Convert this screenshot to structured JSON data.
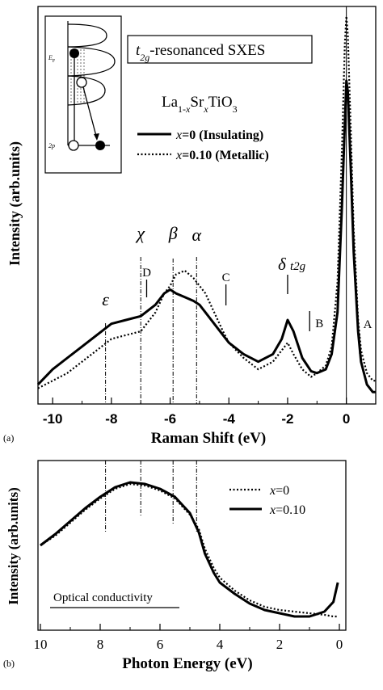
{
  "chart_data": [
    {
      "panel": "(a)",
      "type": "line",
      "title": "t2g-resonanced SXES",
      "compound": "La1-xSrxTiO3",
      "xlabel": "Raman Shift (eV)",
      "ylabel": "Intensity (arb.units)",
      "xlim": [
        -10.5,
        1.0
      ],
      "xticks": [
        "-10",
        "-8",
        "-6",
        "-4",
        "-2",
        "0"
      ],
      "xtick_values": [
        -10,
        -8,
        -6,
        -4,
        -2,
        0
      ],
      "series": [
        {
          "name": "x=0 (Insulating)",
          "style": "solid",
          "x": [
            -10.5,
            -10,
            -9.5,
            -9,
            -8.5,
            -8,
            -7.5,
            -7,
            -6.5,
            -6.2,
            -6,
            -5.8,
            -5.5,
            -5.2,
            -5,
            -4.8,
            -4.5,
            -4.2,
            -4,
            -3.5,
            -3,
            -2.5,
            -2.2,
            -2,
            -1.8,
            -1.5,
            -1.2,
            -1,
            -0.7,
            -0.5,
            -0.3,
            -0.15,
            -0.05,
            0,
            0.05,
            0.15,
            0.25,
            0.4,
            0.5,
            0.7,
            0.9,
            1.0
          ],
          "y": [
            0.03,
            0.07,
            0.1,
            0.13,
            0.16,
            0.19,
            0.2,
            0.21,
            0.24,
            0.27,
            0.28,
            0.27,
            0.26,
            0.25,
            0.24,
            0.22,
            0.19,
            0.16,
            0.14,
            0.11,
            0.09,
            0.11,
            0.15,
            0.2,
            0.17,
            0.1,
            0.065,
            0.06,
            0.07,
            0.11,
            0.22,
            0.5,
            0.72,
            0.83,
            0.8,
            0.6,
            0.38,
            0.17,
            0.09,
            0.03,
            0.01,
            0.01
          ]
        },
        {
          "name": "x=0.10 (Metallic)",
          "style": "dotted",
          "x": [
            -10.5,
            -10,
            -9.5,
            -9,
            -8.5,
            -8,
            -7.5,
            -7,
            -6.5,
            -6.2,
            -6,
            -5.8,
            -5.5,
            -5.2,
            -5,
            -4.8,
            -4.5,
            -4.2,
            -4,
            -3.5,
            -3,
            -2.5,
            -2.2,
            -2,
            -1.8,
            -1.5,
            -1.2,
            -1,
            -0.7,
            -0.5,
            -0.3,
            -0.15,
            -0.05,
            0,
            0.05,
            0.15,
            0.25,
            0.4,
            0.5,
            0.7,
            0.9,
            1.0
          ],
          "y": [
            0.02,
            0.04,
            0.06,
            0.09,
            0.12,
            0.15,
            0.16,
            0.17,
            0.22,
            0.27,
            0.29,
            0.32,
            0.33,
            0.31,
            0.29,
            0.27,
            0.22,
            0.17,
            0.14,
            0.1,
            0.07,
            0.09,
            0.12,
            0.14,
            0.11,
            0.07,
            0.05,
            0.06,
            0.08,
            0.13,
            0.3,
            0.65,
            0.93,
            1.0,
            0.95,
            0.7,
            0.44,
            0.2,
            0.12,
            0.06,
            0.04,
            0.04
          ]
        }
      ],
      "peak_labels": [
        {
          "text": "ε",
          "x": -8.2
        },
        {
          "text": "χ",
          "x": -7.0
        },
        {
          "text": "β",
          "x": -5.9
        },
        {
          "text": "α",
          "x": -5.1
        },
        {
          "text": "δ t2g",
          "x": -2.0
        }
      ],
      "tick_markers": [
        {
          "text": "D",
          "x": -6.8
        },
        {
          "text": "C",
          "x": -4.1
        },
        {
          "text": "B",
          "x": -1.25
        },
        {
          "text": "A",
          "x": 0.45
        }
      ],
      "legend": "upper-right"
    },
    {
      "panel": "(b)",
      "type": "line",
      "xlabel": "Photon Energy (eV)",
      "ylabel": "Intensity (arb.units)",
      "xlim": [
        10,
        0
      ],
      "xticks": [
        "10",
        "8",
        "6",
        "4",
        "2",
        "0"
      ],
      "xtick_values": [
        10,
        8,
        6,
        4,
        2,
        0
      ],
      "annotation": "Optical conductivity",
      "series": [
        {
          "name": "x=0",
          "style": "dotted",
          "x": [
            10,
            9.5,
            9,
            8.5,
            8,
            7.5,
            7,
            6.5,
            6,
            5.5,
            5,
            4.7,
            4.5,
            4.2,
            4,
            3.5,
            3,
            2.5,
            2,
            1.5,
            1,
            0.5,
            0.2,
            0.05
          ],
          "y": [
            0.5,
            0.56,
            0.64,
            0.72,
            0.79,
            0.85,
            0.88,
            0.87,
            0.84,
            0.79,
            0.69,
            0.6,
            0.48,
            0.36,
            0.3,
            0.22,
            0.16,
            0.12,
            0.1,
            0.09,
            0.08,
            0.07,
            0.06,
            0.06
          ]
        },
        {
          "name": "x=0.10",
          "style": "solid",
          "x": [
            10,
            9.5,
            9,
            8.5,
            8,
            7.5,
            7,
            6.5,
            6,
            5.5,
            5,
            4.7,
            4.5,
            4.2,
            4,
            3.5,
            3,
            2.5,
            2,
            1.5,
            1,
            0.5,
            0.2,
            0.05
          ],
          "y": [
            0.5,
            0.57,
            0.65,
            0.73,
            0.8,
            0.86,
            0.89,
            0.88,
            0.85,
            0.8,
            0.7,
            0.58,
            0.45,
            0.33,
            0.27,
            0.2,
            0.14,
            0.1,
            0.08,
            0.06,
            0.06,
            0.09,
            0.15,
            0.27
          ]
        }
      ],
      "legend": "upper-right"
    }
  ],
  "labels": {
    "panel_a": "(a)",
    "panel_b": "(b)",
    "sxes_title_prefix": "t",
    "sxes_title_sub": "2g",
    "sxes_title_rest": "-resonanced SXES",
    "compound_la": "La",
    "compound_sub1": "1-",
    "compound_x1": "x",
    "compound_sr": "Sr",
    "compound_x2": "x",
    "compound_tio": "TiO",
    "compound_sub3": "3",
    "legend_a_1_var": "x",
    "legend_a_1_rest": "=0 (Insulating)",
    "legend_a_2_var": "x",
    "legend_a_2_rest": "=0.10 (Metallic)",
    "legend_b_1_var": "x",
    "legend_b_1_rest": "=0",
    "legend_b_2_var": "x",
    "legend_b_2_rest": "=0.10",
    "inset_eF": "E",
    "inset_eF_sub": "F",
    "inset_2p": "2p",
    "delta_sub": "t2g"
  }
}
